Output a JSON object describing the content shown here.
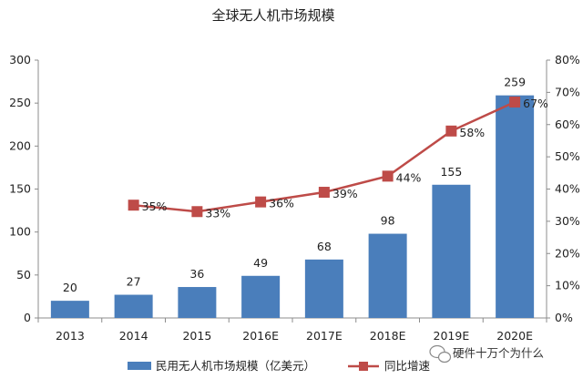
{
  "chart_data": {
    "type": "bar",
    "title": "全球无人机市场规模",
    "categories": [
      "2013",
      "2014",
      "2015",
      "2016E",
      "2017E",
      "2018E",
      "2019E",
      "2020E"
    ],
    "series": [
      {
        "name": "民用无人机市场规模（亿美元）",
        "type": "bar",
        "axis": "left",
        "values": [
          20,
          27,
          36,
          49,
          68,
          98,
          155,
          259
        ],
        "labels": [
          "20",
          "27",
          "36",
          "49",
          "68",
          "98",
          "155",
          "259"
        ]
      },
      {
        "name": "同比增速",
        "type": "line",
        "axis": "right",
        "values": [
          null,
          35,
          33,
          36,
          39,
          44,
          58,
          67
        ],
        "labels": [
          "",
          "35%",
          "33%",
          "36%",
          "39%",
          "44%",
          "58%",
          "67%"
        ]
      }
    ],
    "y_left": {
      "ylim": [
        0,
        300
      ],
      "ticks": [
        "0",
        "50",
        "100",
        "150",
        "200",
        "250",
        "300"
      ]
    },
    "y_right": {
      "ylim": [
        0,
        80
      ],
      "ticks": [
        "0%",
        "10%",
        "20%",
        "30%",
        "40%",
        "50%",
        "60%",
        "70%",
        "80%"
      ]
    },
    "grid": false,
    "legend": "bottom",
    "colors": {
      "bar": "#4a7ebb",
      "line": "#be4b48"
    }
  },
  "watermark": {
    "text": "硬件十万个为什么"
  }
}
